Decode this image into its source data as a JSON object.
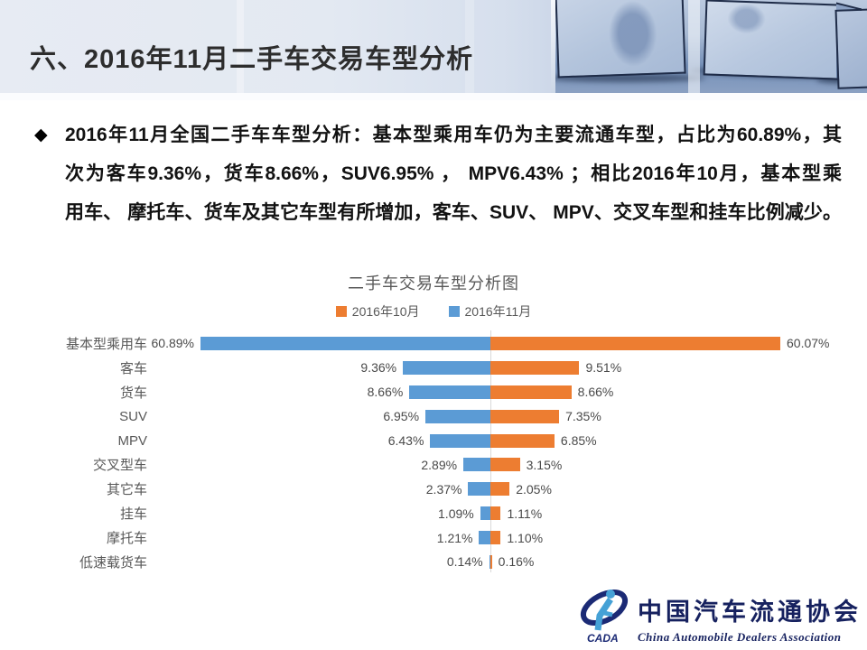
{
  "header": {
    "title": "六、2016年11月二手车交易车型分析"
  },
  "bullet": {
    "marker": "◆",
    "lines": [
      "2016年11月全国二手车车型分析：基本型乘用车仍为主要流通车型，占比为60.89%，其",
      "次为客车9.36%，货车8.66%，SUV6.95% ， MPV6.43% ；相比2016年10月，基本型乘",
      "用车、 摩托车、货车及其它车型有所增加，客车、SUV、 MPV、交叉车型和挂车比例减少。"
    ]
  },
  "chart_data": {
    "type": "bar",
    "orientation": "horizontal-butterfly",
    "title": "二手车交易车型分析图",
    "legend_position": "top",
    "grid": false,
    "xlim": [
      -31,
      31
    ],
    "axis_color": "#d9d9d9",
    "value_suffix": "%",
    "categories": [
      "基本型乘用车",
      "客车",
      "货车",
      "SUV",
      "MPV",
      "交叉型车",
      "其它车",
      "挂车",
      "摩托车",
      "低速载货车"
    ],
    "series": [
      {
        "name": "2016年10月",
        "side": "right",
        "color": "#ED7D31",
        "values": [
          60.07,
          9.51,
          8.66,
          7.35,
          6.85,
          3.15,
          2.05,
          1.11,
          1.1,
          0.16
        ],
        "labels": [
          "60.07%",
          "9.51%",
          "8.66%",
          "7.35%",
          "6.85%",
          "3.15%",
          "2.05%",
          "1.11%",
          "1.10%",
          "0.16%"
        ]
      },
      {
        "name": "2016年11月",
        "side": "left",
        "color": "#5B9BD5",
        "values": [
          60.89,
          9.36,
          8.66,
          6.95,
          6.43,
          2.89,
          2.37,
          1.09,
          1.21,
          0.14
        ],
        "labels": [
          "60.89%",
          "9.36%",
          "8.66%",
          "6.95%",
          "6.43%",
          "2.89%",
          "2.37%",
          "1.09%",
          "1.21%",
          "0.14%"
        ]
      }
    ]
  },
  "logo": {
    "acronym": "CADA",
    "name_cn": "中国汽车流通协会",
    "name_en": "China Automobile Dealers Association"
  }
}
